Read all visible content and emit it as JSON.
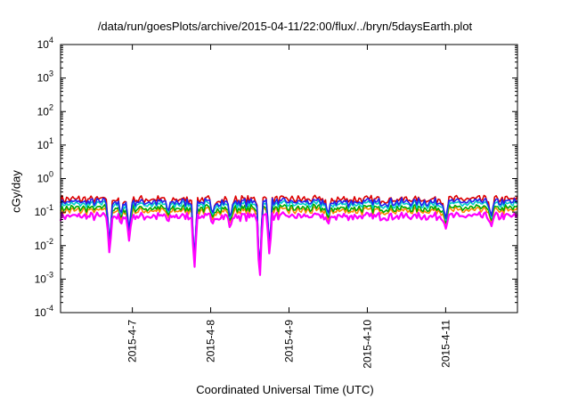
{
  "chart_data": {
    "type": "line",
    "title": "/data/run/goesPlots/archive/2015-04-11/22:00/flux/../bryn/5daysEarth.plot",
    "xlabel": "Coordinated Universal Time (UTC)",
    "ylabel": "cGy/day",
    "yscale": "log",
    "ylim": [
      0.0001,
      10000
    ],
    "xlim": [
      "2015-04-06T02:00",
      "2015-04-11T22:00"
    ],
    "y_ticks": [
      {
        "base": "10",
        "exp": "-4",
        "value": 0.0001
      },
      {
        "base": "10",
        "exp": "-3",
        "value": 0.001
      },
      {
        "base": "10",
        "exp": "-2",
        "value": 0.01
      },
      {
        "base": "10",
        "exp": "-1",
        "value": 0.1
      },
      {
        "base": "10",
        "exp": "0",
        "value": 1
      },
      {
        "base": "10",
        "exp": "1",
        "value": 10
      },
      {
        "base": "10",
        "exp": "2",
        "value": 100
      },
      {
        "base": "10",
        "exp": "3",
        "value": 1000
      },
      {
        "base": "10",
        "exp": "4",
        "value": 10000
      }
    ],
    "x_ticks": [
      {
        "label": "2015-4-7",
        "value": "2015-04-07T00:00"
      },
      {
        "label": "2015-4-8",
        "value": "2015-04-08T00:00"
      },
      {
        "label": "2015-4-9",
        "value": "2015-04-09T00:00"
      },
      {
        "label": "2015-4-10",
        "value": "2015-04-10T00:00"
      },
      {
        "label": "2015-4-11",
        "value": "2015-04-11T00:00"
      }
    ],
    "grid": false,
    "legend": "none",
    "series_colors": [
      "#dd0000",
      "#ff8800",
      "#00aa00",
      "#00cccc",
      "#2222ee",
      "#ff00ff"
    ],
    "series_base": [
      0.24,
      0.11,
      0.13,
      0.17,
      0.2,
      0.075
    ],
    "dips": [
      {
        "time": "2015-04-06T17:00",
        "min": 0.005
      },
      {
        "time": "2015-04-06T20:30",
        "min": 0.04
      },
      {
        "time": "2015-04-06T23:00",
        "min": 0.014
      },
      {
        "time": "2015-04-07T11:00",
        "min": 0.05
      },
      {
        "time": "2015-04-07T19:00",
        "min": 0.0017
      },
      {
        "time": "2015-04-08T00:30",
        "min": 0.04
      },
      {
        "time": "2015-04-08T06:00",
        "min": 0.03
      },
      {
        "time": "2015-04-08T15:00",
        "min": 0.0006
      },
      {
        "time": "2015-04-08T18:00",
        "min": 0.0048
      },
      {
        "time": "2015-04-09T12:00",
        "min": 0.04
      },
      {
        "time": "2015-04-11T00:00",
        "min": 0.03
      },
      {
        "time": "2015-04-11T14:00",
        "min": 0.035
      }
    ]
  }
}
